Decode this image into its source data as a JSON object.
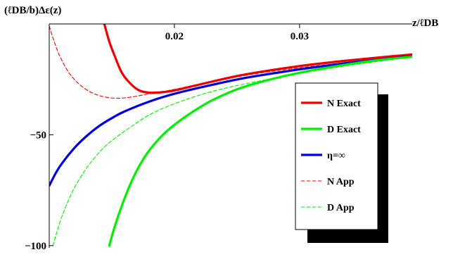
{
  "chart_data": {
    "type": "line",
    "title": "",
    "ylabel": "(ℓDB/b)Δε(z)",
    "xlabel": "z/ℓDB",
    "xlim": [
      0.01,
      0.039
    ],
    "ylim": [
      -101,
      0
    ],
    "x_ticks": [
      {
        "value": 0.02,
        "label": "0.02"
      },
      {
        "value": 0.03,
        "label": "0.03"
      }
    ],
    "y_ticks": [
      {
        "value": -50,
        "label": "−50"
      },
      {
        "value": -100,
        "label": "−100"
      }
    ],
    "axis_position": "x-axis at top (y = 0), y-axis at left (x = 0.0100)",
    "legend_position": "right, boxed with drop shadow",
    "grid": false,
    "series": [
      {
        "name": "N Exact",
        "color": "#ee0000",
        "style": "solid",
        "x": [
          0.0144,
          0.0148,
          0.0152,
          0.0158,
          0.0165,
          0.0172,
          0.018,
          0.019,
          0.02,
          0.0215,
          0.023,
          0.025,
          0.027,
          0.03,
          0.033,
          0.036,
          0.039
        ],
        "y": [
          0,
          -8.0,
          -14.0,
          -22.0,
          -27.0,
          -30.0,
          -31.0,
          -30.8,
          -30.0,
          -28.0,
          -26.0,
          -23.5,
          -21.5,
          -19.0,
          -17.0,
          -15.3,
          -13.8
        ]
      },
      {
        "name": "D Exact",
        "color": "#00ee00",
        "style": "solid",
        "x": [
          0.0148,
          0.0152,
          0.0158,
          0.0165,
          0.0172,
          0.018,
          0.019,
          0.02,
          0.0215,
          0.023,
          0.025,
          0.027,
          0.03,
          0.033,
          0.036,
          0.039
        ],
        "y": [
          -100,
          -92.0,
          -82.0,
          -72.0,
          -64.0,
          -57.0,
          -50.5,
          -45.5,
          -39.5,
          -34.5,
          -29.5,
          -26.0,
          -22.0,
          -19.0,
          -16.5,
          -14.8
        ]
      },
      {
        "name": "η=∞",
        "color": "#0000dd",
        "style": "solid",
        "x": [
          0.01,
          0.0105,
          0.011,
          0.012,
          0.013,
          0.014,
          0.015,
          0.016,
          0.018,
          0.02,
          0.023,
          0.026,
          0.03,
          0.034,
          0.039
        ],
        "y": [
          -73.0,
          -67.5,
          -63.0,
          -56.0,
          -50.5,
          -46.0,
          -42.5,
          -39.5,
          -35.0,
          -31.5,
          -27.5,
          -24.0,
          -20.5,
          -17.5,
          -14.6
        ]
      },
      {
        "name": "N App",
        "color": "#ee0000",
        "style": "dashed",
        "x": [
          0.01,
          0.0104,
          0.0108,
          0.0114,
          0.012,
          0.0128,
          0.0136,
          0.0145,
          0.0155,
          0.0165,
          0.018,
          0.02,
          0.023,
          0.027,
          0.032,
          0.039
        ],
        "y": [
          -1,
          -8.0,
          -14.0,
          -20.5,
          -25.0,
          -29.0,
          -31.5,
          -33.0,
          -33.5,
          -33.0,
          -31.5,
          -29.5,
          -26.0,
          -22.0,
          -18.5,
          -14.2
        ]
      },
      {
        "name": "D App",
        "color": "#00ee00",
        "style": "dashed",
        "x": [
          0.0103,
          0.0106,
          0.011,
          0.0115,
          0.012,
          0.0128,
          0.0136,
          0.0145,
          0.0155,
          0.0165,
          0.018,
          0.02,
          0.023,
          0.027,
          0.033,
          0.039
        ],
        "y": [
          -100,
          -94.0,
          -87.0,
          -80.0,
          -74.0,
          -66.5,
          -60.5,
          -55.0,
          -50.5,
          -46.5,
          -41.0,
          -36.0,
          -30.5,
          -25.5,
          -19.5,
          -14.8
        ]
      }
    ]
  }
}
